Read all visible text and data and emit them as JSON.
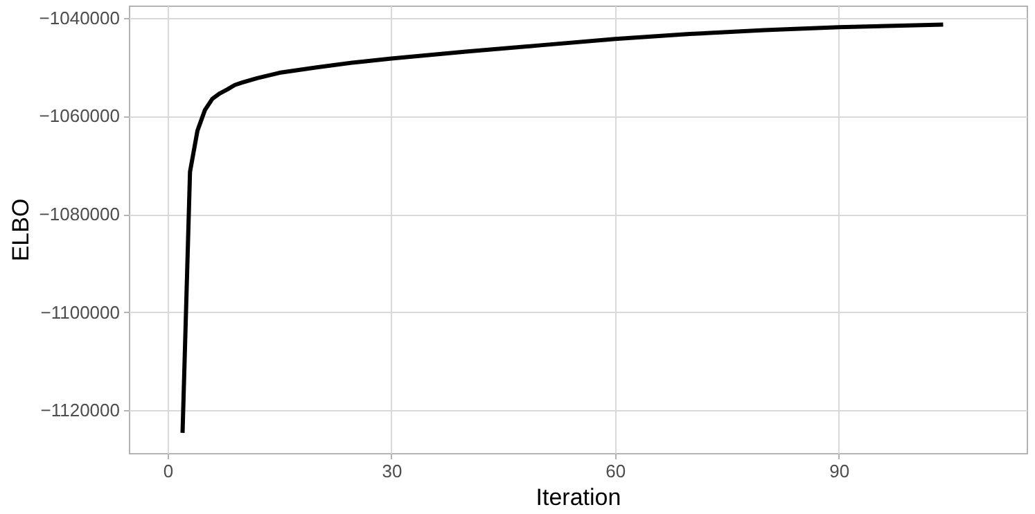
{
  "chart_data": {
    "type": "line",
    "xlabel": "Iteration",
    "ylabel": "ELBO",
    "x": [
      2,
      3,
      4,
      5,
      6,
      7,
      8,
      9,
      10,
      12,
      15,
      20,
      25,
      30,
      40,
      50,
      60,
      70,
      80,
      90,
      104
    ],
    "series": [
      {
        "color": "#000000",
        "values": [
          -1124600,
          -1071400,
          -1063000,
          -1058800,
          -1056500,
          -1055400,
          -1054600,
          -1053700,
          -1053200,
          -1052300,
          -1051200,
          -1050100,
          -1049100,
          -1048300,
          -1046900,
          -1045600,
          -1044300,
          -1043300,
          -1042500,
          -1041900,
          -1041400
        ]
      }
    ],
    "xlim": [
      -5.2,
      115.2
    ],
    "xticks": [
      0,
      30,
      60,
      90
    ],
    "ylim": [
      -1128700,
      -1037500
    ],
    "yticks": [
      {
        "value": -1120000,
        "label": "−1120000"
      },
      {
        "value": -1100000,
        "label": "−1100000"
      },
      {
        "value": -1080000,
        "label": "−1080000"
      },
      {
        "value": -1060000,
        "label": "−1060000"
      },
      {
        "value": -1040000,
        "label": "−1040000"
      }
    ],
    "grid": true,
    "line_style": "solid",
    "marker": "none"
  }
}
